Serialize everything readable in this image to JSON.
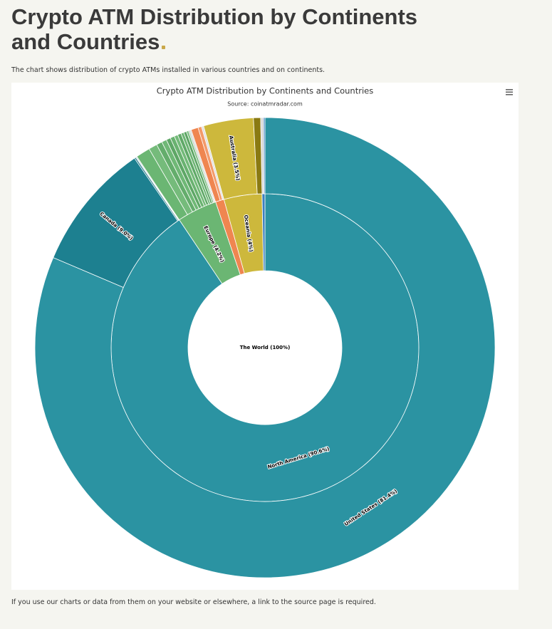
{
  "page": {
    "title": "Crypto ATM Distribution by Continents and Countries",
    "description": "The chart shows distribution of crypto ATMs installed in various countries and on continents.",
    "footer": "If you use our charts or data from them on your website or elsewhere, a link to the source page is required."
  },
  "chart_data": {
    "type": "sunburst",
    "title": "Crypto ATM Distribution by Continents and Countries",
    "subtitle": "Source: coinatmradar.com",
    "rings": [
      {
        "values": [
          100
        ],
        "value_labels": [
          "The World (100%)"
        ],
        "colors": [
          "#ffffff"
        ]
      },
      {
        "values": [
          90.6,
          4.2,
          0.9,
          4.0,
          0.3
        ],
        "value_labels": [
          "North America (90.6%)",
          "Europe (4.2%)",
          null,
          "Oceania (4%)",
          null
        ],
        "colors": [
          "#2b93a2",
          "#6bb673",
          "#ef8650",
          "#cdb83c",
          "#3c7fbf"
        ]
      },
      {
        "values": [
          81.4,
          9.0,
          0.1,
          0.05,
          0.05,
          1.0,
          0.6,
          0.4,
          0.35,
          0.3,
          0.3,
          0.25,
          0.25,
          0.2,
          0.2,
          0.15,
          0.1,
          0.1,
          0.5,
          0.25,
          0.15,
          3.5,
          0.5,
          0.2,
          0.1
        ],
        "value_labels": [
          "United States (81.4%)",
          "Canada (9.0%)",
          null,
          null,
          null,
          null,
          null,
          null,
          null,
          null,
          null,
          null,
          null,
          null,
          null,
          null,
          null,
          null,
          null,
          null,
          null,
          "Australia (3.5%)",
          null,
          null,
          null
        ],
        "colors": [
          "#2b93a2",
          "#1d8090",
          "#167181",
          "#136775",
          "#0f5d6b",
          "#6bb673",
          "#75bb7b",
          "#64ad6c",
          "#6fb876",
          "#5ea766",
          "#69b270",
          "#73ba79",
          "#60a968",
          "#6cb573",
          "#5ca564",
          "#78bd7e",
          "#b9c9b9",
          "#d6d6d6",
          "#ef8650",
          "#f39a6a",
          "#e0e0e0",
          "#cdb83c",
          "#8a7a12",
          "#d9d9d9",
          "#3c7fbf"
        ]
      }
    ]
  }
}
